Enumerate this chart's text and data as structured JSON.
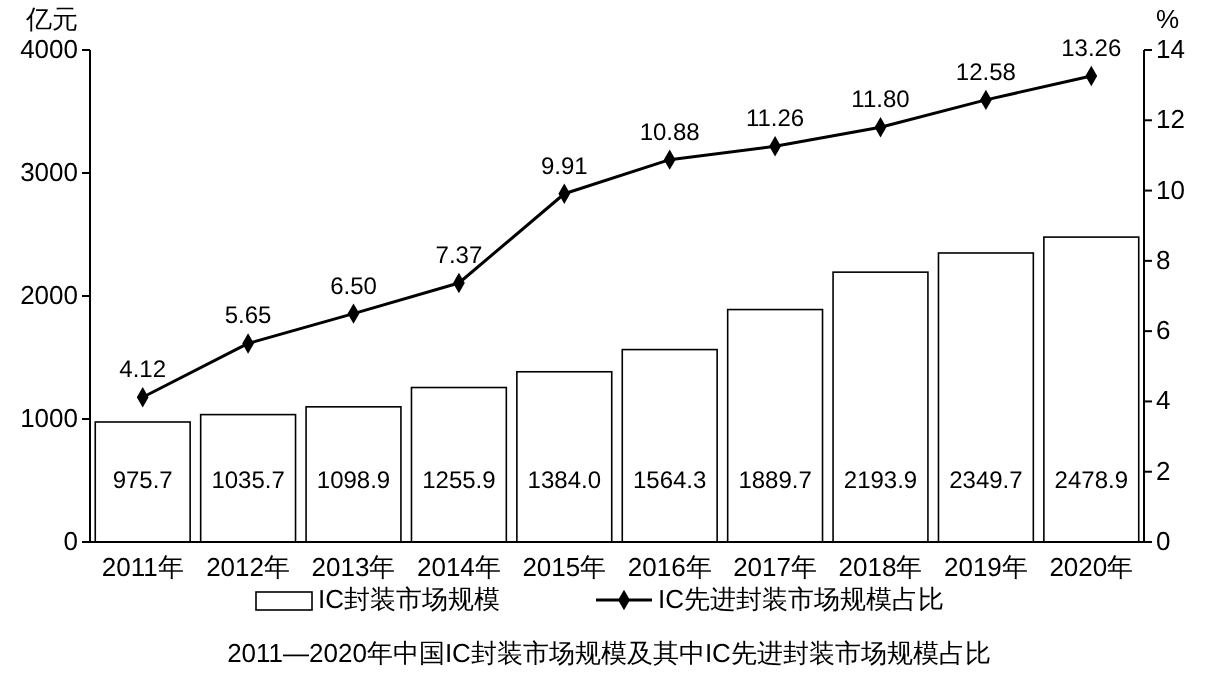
{
  "chart_data": {
    "type": "bar",
    "title": "2011—2020年中国IC封装市场规模及其中IC先进封装市场规模占比",
    "ylabel": "亿元",
    "y2label": "%",
    "categories": [
      "2011年",
      "2012年",
      "2013年",
      "2014年",
      "2015年",
      "2016年",
      "2017年",
      "2018年",
      "2019年",
      "2020年"
    ],
    "series": [
      {
        "name": "IC封装市场规模",
        "color": "#ffffff",
        "values": [
          975.7,
          1035.7,
          1098.9,
          1255.9,
          1384.0,
          1564.3,
          1889.7,
          2193.9,
          2349.7,
          2478.9
        ],
        "value_labels": [
          "975.7",
          "1035.7",
          "1098.9",
          "1255.9",
          "1384.0",
          "1564.3",
          "1889.7",
          "2193.9",
          "2349.7",
          "2478.9"
        ]
      },
      {
        "name": "IC先进封装市场规模占比",
        "type": "line",
        "axis": "y2",
        "color": "#000000",
        "marker": "diamond",
        "values": [
          4.12,
          5.65,
          6.5,
          7.37,
          9.91,
          10.88,
          11.26,
          11.8,
          12.58,
          13.26
        ],
        "value_labels": [
          "4.12",
          "5.65",
          "6.50",
          "7.37",
          "9.91",
          "10.88",
          "11.26",
          "11.80",
          "12.58",
          "13.26"
        ]
      }
    ],
    "ylim": [
      0,
      4000
    ],
    "yticks": [
      0,
      1000,
      2000,
      3000,
      4000
    ],
    "y2lim": [
      0,
      14
    ],
    "y2ticks": [
      0,
      2,
      4,
      6,
      8,
      10,
      12,
      14
    ],
    "legend": "bottom",
    "grid": false
  }
}
